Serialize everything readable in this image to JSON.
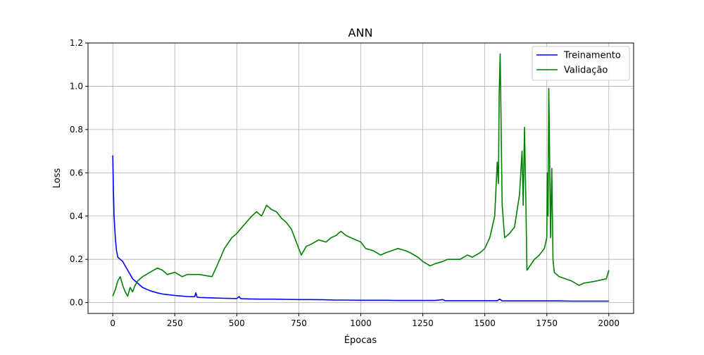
{
  "chart_data": {
    "type": "line",
    "title": "ANN",
    "xlabel": "Épocas",
    "ylabel": "Loss",
    "xlim": [
      -100,
      2100
    ],
    "ylim": [
      -0.05,
      1.2
    ],
    "xticks": [
      0,
      250,
      500,
      750,
      1000,
      1250,
      1500,
      1750,
      2000
    ],
    "xtick_labels": [
      "0",
      "250",
      "500",
      "750",
      "1000",
      "1250",
      "1500",
      "1750",
      "2000"
    ],
    "yticks": [
      0.0,
      0.2,
      0.4,
      0.6,
      0.8,
      1.0,
      1.2
    ],
    "ytick_labels": [
      "0.0",
      "0.2",
      "0.4",
      "0.6",
      "0.8",
      "1.0",
      "1.2"
    ],
    "grid": true,
    "legend_position": "top-right",
    "series": [
      {
        "name": "Treinamento",
        "color": "#0000ff",
        "x": [
          0,
          2,
          5,
          10,
          15,
          20,
          30,
          40,
          50,
          60,
          70,
          80,
          100,
          120,
          150,
          180,
          200,
          250,
          300,
          330,
          335,
          340,
          350,
          400,
          450,
          500,
          510,
          515,
          520,
          550,
          600,
          650,
          700,
          750,
          800,
          850,
          900,
          950,
          1000,
          1050,
          1100,
          1150,
          1200,
          1250,
          1300,
          1330,
          1340,
          1350,
          1400,
          1450,
          1500,
          1550,
          1560,
          1570,
          1600,
          1650,
          1700,
          1750,
          1800,
          1850,
          1900,
          1950,
          2000
        ],
        "y": [
          0.68,
          0.55,
          0.4,
          0.3,
          0.24,
          0.21,
          0.2,
          0.19,
          0.17,
          0.15,
          0.13,
          0.11,
          0.09,
          0.07,
          0.055,
          0.045,
          0.04,
          0.033,
          0.028,
          0.027,
          0.045,
          0.025,
          0.024,
          0.022,
          0.02,
          0.019,
          0.028,
          0.019,
          0.018,
          0.017,
          0.016,
          0.016,
          0.015,
          0.014,
          0.014,
          0.013,
          0.012,
          0.012,
          0.011,
          0.011,
          0.011,
          0.01,
          0.01,
          0.01,
          0.01,
          0.014,
          0.009,
          0.009,
          0.009,
          0.009,
          0.009,
          0.009,
          0.016,
          0.008,
          0.008,
          0.008,
          0.008,
          0.008,
          0.008,
          0.007,
          0.007,
          0.007,
          0.007
        ]
      },
      {
        "name": "Validação",
        "color": "#008000",
        "x": [
          0,
          10,
          20,
          30,
          40,
          50,
          60,
          70,
          80,
          90,
          100,
          120,
          150,
          180,
          200,
          220,
          250,
          280,
          300,
          350,
          400,
          420,
          450,
          480,
          500,
          530,
          560,
          580,
          600,
          620,
          640,
          660,
          680,
          700,
          720,
          740,
          750,
          760,
          780,
          800,
          830,
          860,
          880,
          900,
          920,
          940,
          960,
          980,
          1000,
          1020,
          1050,
          1080,
          1100,
          1150,
          1180,
          1200,
          1230,
          1250,
          1280,
          1300,
          1330,
          1350,
          1400,
          1430,
          1450,
          1480,
          1500,
          1520,
          1540,
          1550,
          1555,
          1558,
          1562,
          1570,
          1580,
          1600,
          1620,
          1640,
          1650,
          1655,
          1660,
          1665,
          1670,
          1700,
          1720,
          1740,
          1750,
          1752,
          1755,
          1758,
          1760,
          1765,
          1770,
          1775,
          1780,
          1800,
          1850,
          1880,
          1900,
          1950,
          1990,
          2000
        ],
        "y": [
          0.03,
          0.06,
          0.1,
          0.12,
          0.08,
          0.05,
          0.03,
          0.07,
          0.05,
          0.08,
          0.1,
          0.12,
          0.14,
          0.16,
          0.15,
          0.13,
          0.14,
          0.12,
          0.13,
          0.13,
          0.12,
          0.17,
          0.25,
          0.3,
          0.32,
          0.36,
          0.4,
          0.42,
          0.4,
          0.45,
          0.43,
          0.42,
          0.39,
          0.37,
          0.34,
          0.28,
          0.25,
          0.22,
          0.26,
          0.27,
          0.29,
          0.28,
          0.3,
          0.31,
          0.33,
          0.31,
          0.3,
          0.29,
          0.28,
          0.25,
          0.24,
          0.22,
          0.23,
          0.25,
          0.24,
          0.23,
          0.21,
          0.19,
          0.17,
          0.18,
          0.19,
          0.2,
          0.2,
          0.22,
          0.21,
          0.23,
          0.25,
          0.3,
          0.4,
          0.65,
          0.55,
          0.97,
          1.15,
          0.45,
          0.3,
          0.32,
          0.35,
          0.5,
          0.7,
          0.45,
          0.81,
          0.5,
          0.15,
          0.2,
          0.22,
          0.25,
          0.3,
          0.6,
          0.4,
          0.99,
          0.83,
          0.3,
          0.62,
          0.2,
          0.14,
          0.12,
          0.1,
          0.08,
          0.09,
          0.1,
          0.11,
          0.15
        ]
      }
    ]
  }
}
